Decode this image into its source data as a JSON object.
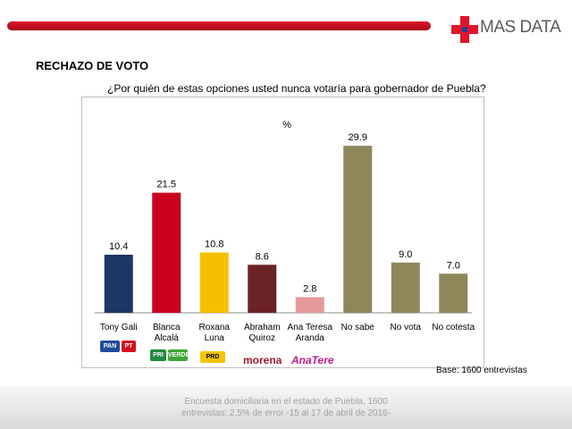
{
  "header": {
    "brand": "MAS DATA",
    "colors": {
      "bar": "#c4091f",
      "logo_red": "#e0142a",
      "logo_blue": "#2a3f95"
    }
  },
  "section_title": "RECHAZO DE VOTO",
  "question": "¿Por quién de estas opciones usted nunca votaría para gobernador de Puebla?",
  "chart_data": {
    "type": "bar",
    "unit_label": "%",
    "categories": [
      "Tony Gali",
      "Blanca Alcalá",
      "Roxana Luna",
      "Abraham Quiroz",
      "Ana Teresa Aranda",
      "No sabe",
      "No vota",
      "No cotesta"
    ],
    "category_lines": [
      [
        "Tony Gali"
      ],
      [
        "Blanca",
        "Alcalá"
      ],
      [
        "Roxana",
        "Luna"
      ],
      [
        "Abraham",
        "Quiroz"
      ],
      [
        "Ana Teresa",
        "Aranda"
      ],
      [
        "No sabe"
      ],
      [
        "No vota"
      ],
      [
        "No cotesta"
      ]
    ],
    "values": [
      10.4,
      21.5,
      10.8,
      8.6,
      2.8,
      29.9,
      9.0,
      7.0
    ],
    "value_labels": [
      "10.4",
      "21.5",
      "10.8",
      "8.6",
      "2.8",
      "29.9",
      "9.0",
      "7.0"
    ],
    "colors": [
      "#1c3763",
      "#c8001e",
      "#f5c000",
      "#6b2224",
      "#e39a99",
      "#8e875a",
      "#8e875a",
      "#8e875a"
    ],
    "ylim": [
      0,
      32
    ],
    "grid": false,
    "legend": "none"
  },
  "party_logos": {
    "gali": [
      "PAN",
      "PT"
    ],
    "alcala": [
      "PRI",
      "VERDE"
    ],
    "luna": [
      "PRD"
    ],
    "quiroz": [
      "morena"
    ],
    "aranda": [
      "AnaTere"
    ]
  },
  "base_note": "Base: 1600 entrevistas",
  "footer": {
    "line1": "Encuesta domiciliaria en el estado de Puebla, 1600",
    "line2": "entrevistas: 2.5% de error  -15 al 17 de abril de 2016-"
  }
}
